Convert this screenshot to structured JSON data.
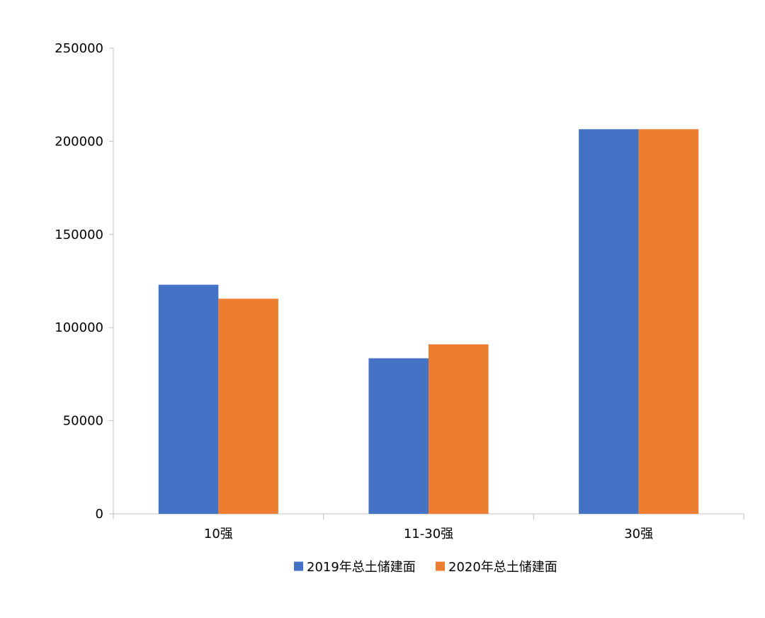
{
  "chart_data": {
    "type": "bar",
    "categories": [
      "10强",
      "11-30强",
      "30强"
    ],
    "series": [
      {
        "name": "2019年总土储建面",
        "color": "#4472c4",
        "values": [
          123000,
          83500,
          206500
        ]
      },
      {
        "name": "2020年总土储建面",
        "color": "#ed7d31",
        "values": [
          115500,
          91000,
          206500
        ]
      }
    ],
    "ylim": [
      0,
      250000
    ],
    "yticks": [
      0,
      50000,
      100000,
      150000,
      200000,
      250000
    ],
    "ytick_labels": [
      "0",
      "50000",
      "100000",
      "150000",
      "200000",
      "250000"
    ],
    "grid": false,
    "legend_position": "bottom"
  }
}
